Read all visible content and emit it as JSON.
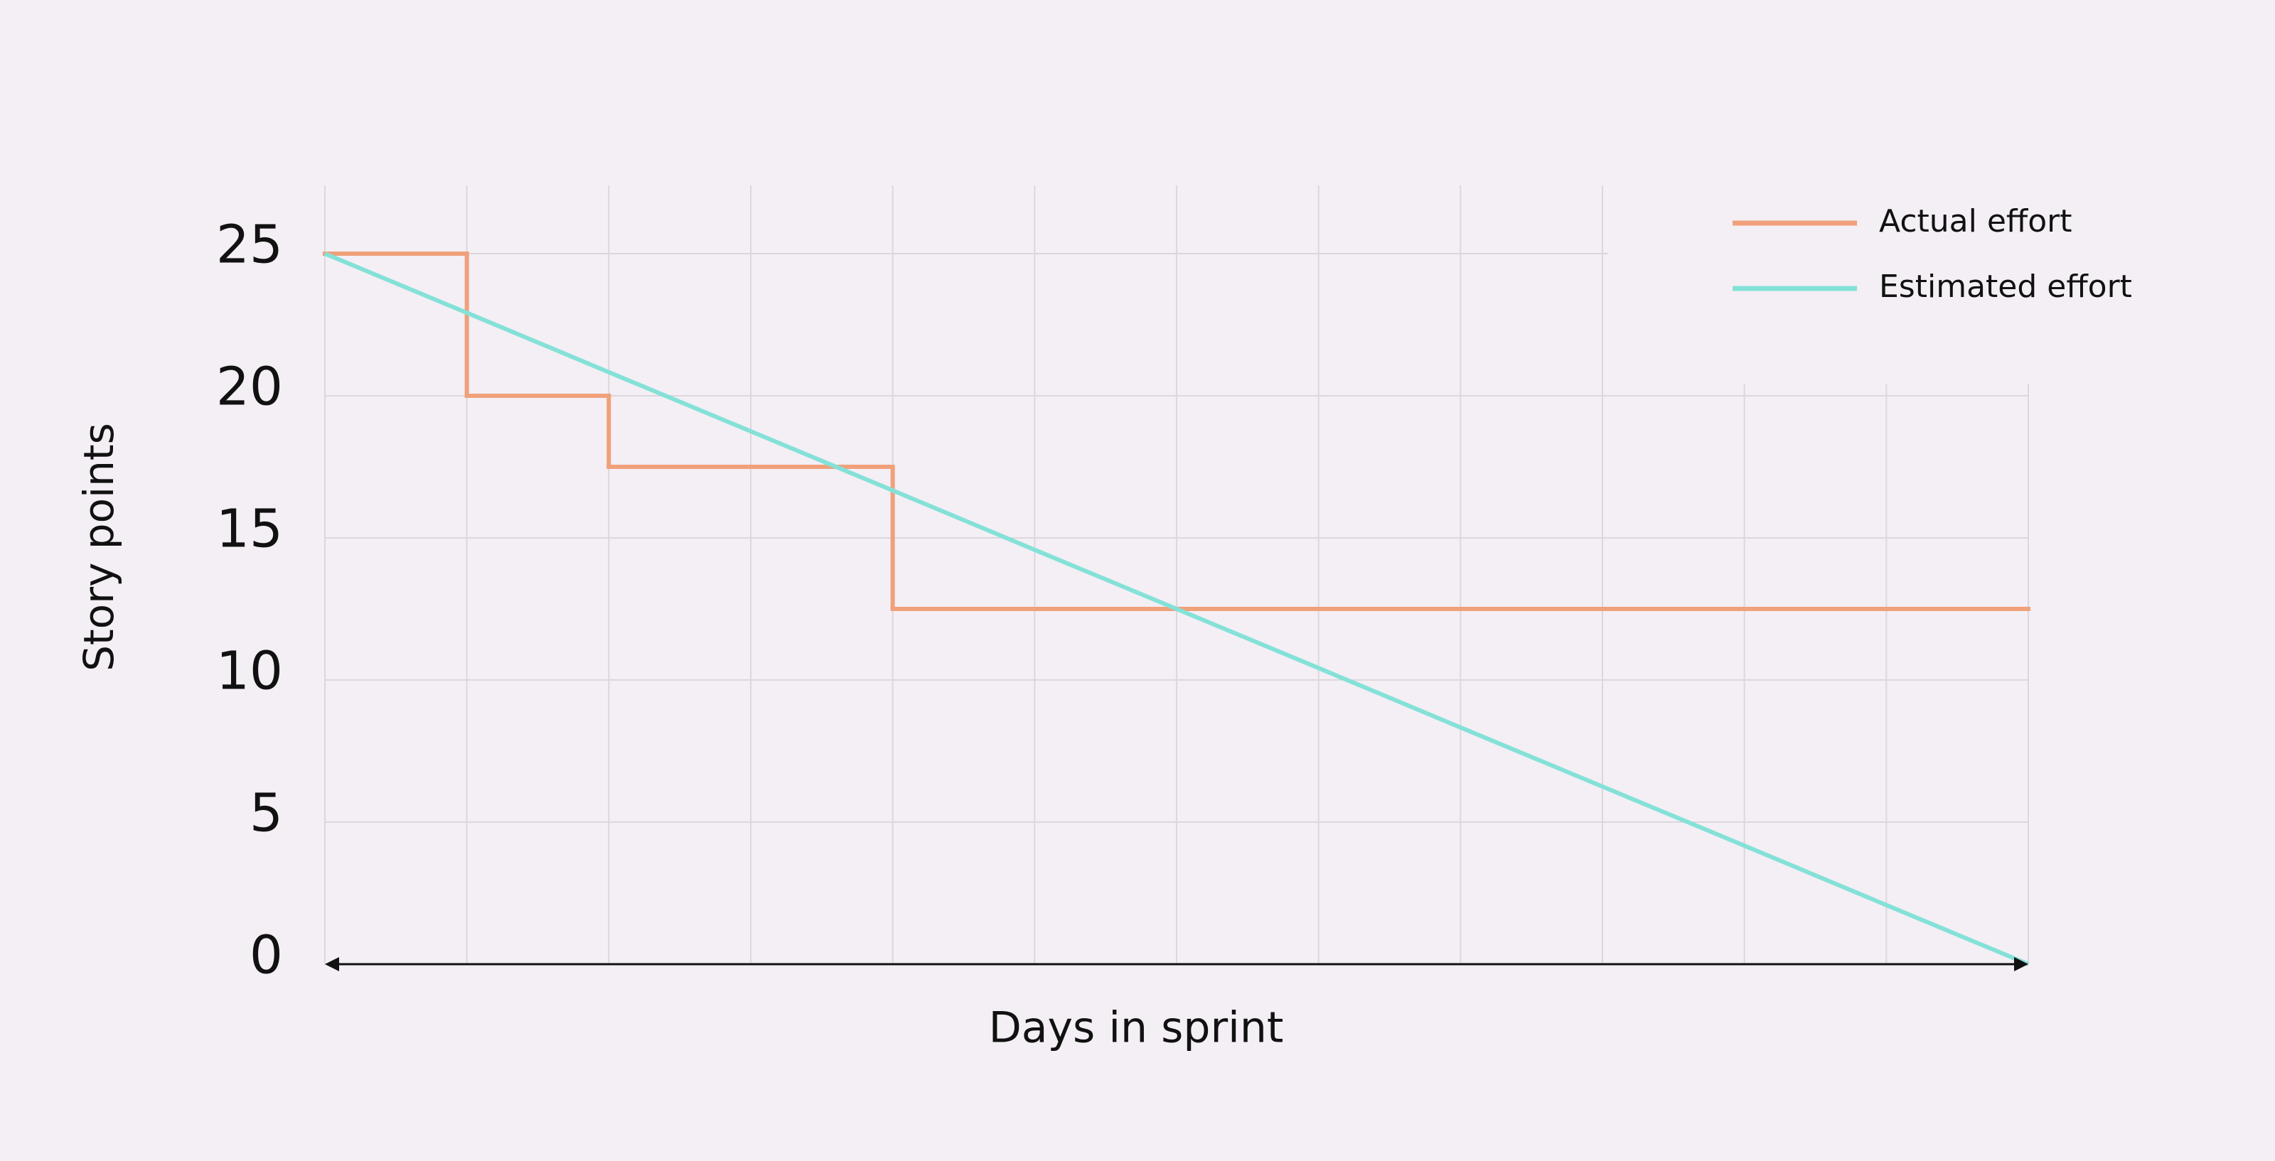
{
  "chart_data": {
    "type": "line",
    "x_label": "Days in sprint",
    "y_label": "Story points",
    "x": [
      0,
      1,
      2,
      3,
      4,
      5,
      6,
      7,
      8,
      9,
      10,
      11,
      12
    ],
    "xlim": [
      0,
      12
    ],
    "ylim": [
      0,
      25
    ],
    "yticks": [
      0,
      5,
      10,
      15,
      20,
      25
    ],
    "grid": true,
    "legend": "upper right",
    "series": [
      {
        "name": "Actual effort",
        "color": "#f0a07a",
        "step": true,
        "values": [
          25,
          20,
          17.5,
          17.5,
          12.5,
          12.5,
          12.5,
          12.5,
          12.5,
          12.5,
          12.5,
          12.5,
          12.5
        ]
      },
      {
        "name": "Estimated effort",
        "color": "#84e1d8",
        "values": [
          25,
          22.92,
          20.83,
          18.75,
          16.67,
          14.58,
          12.5,
          10.42,
          8.33,
          6.25,
          4.17,
          2.08,
          0
        ]
      }
    ]
  }
}
